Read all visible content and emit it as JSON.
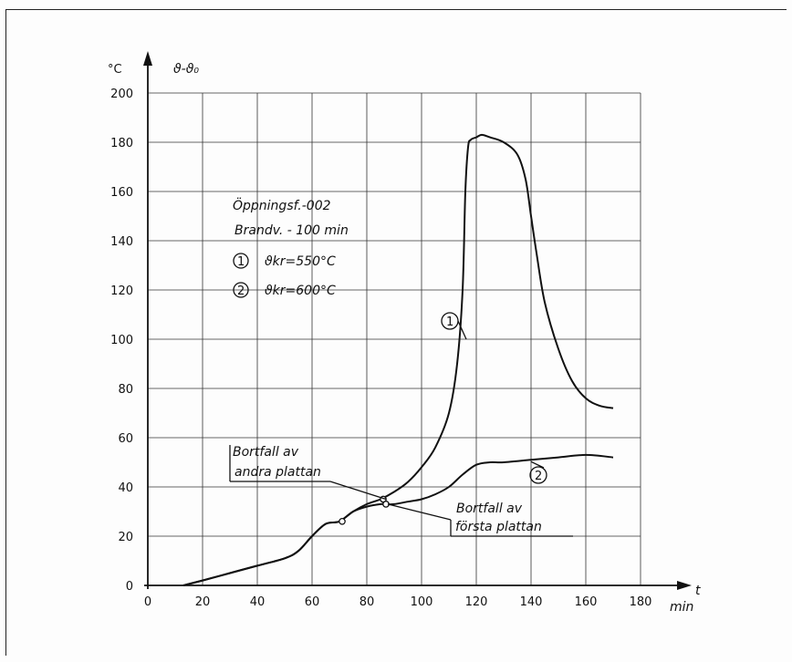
{
  "chart_data": {
    "type": "line",
    "y_unit_label": "°C",
    "y_quantity_label": "ϑ-ϑ₀",
    "x_quantity_label": "t",
    "x_unit_label": "min",
    "xlim": [
      0,
      180
    ],
    "ylim": [
      0,
      200
    ],
    "x_ticks": [
      0,
      20,
      40,
      60,
      80,
      100,
      120,
      140,
      160,
      180
    ],
    "y_ticks": [
      0,
      20,
      40,
      60,
      80,
      100,
      120,
      140,
      160,
      180,
      200
    ],
    "grid": true,
    "info_box": {
      "line1": "Öppningsf.-002",
      "line2": "Brandv. - 100 min",
      "item1_marker": "1",
      "item1_text": "ϑkr=550°C",
      "item2_marker": "2",
      "item2_text": "ϑkr=600°C"
    },
    "series": [
      {
        "name": "1",
        "x": [
          13,
          20,
          30,
          40,
          50,
          55,
          60,
          65,
          70,
          75,
          80,
          85,
          90,
          95,
          100,
          105,
          110,
          113,
          115,
          116,
          117,
          118,
          120,
          122,
          125,
          130,
          135,
          138,
          140,
          142,
          145,
          150,
          155,
          160,
          165,
          170
        ],
        "y": [
          0,
          2,
          5,
          8,
          11,
          14,
          20,
          25,
          26,
          30,
          33,
          35,
          38,
          42,
          48,
          56,
          70,
          90,
          120,
          160,
          178,
          181,
          182,
          183,
          182,
          180,
          175,
          165,
          150,
          135,
          115,
          96,
          83,
          76,
          73,
          72
        ]
      },
      {
        "name": "2",
        "x": [
          13,
          20,
          30,
          40,
          50,
          55,
          60,
          65,
          70,
          75,
          80,
          85,
          87,
          90,
          95,
          100,
          105,
          110,
          115,
          120,
          125,
          130,
          140,
          150,
          160,
          170
        ],
        "y": [
          0,
          2,
          5,
          8,
          11,
          14,
          20,
          25,
          26,
          30,
          32,
          33,
          33,
          33,
          34,
          35,
          37,
          40,
          45,
          49,
          50,
          50,
          51,
          52,
          53,
          52
        ]
      }
    ],
    "annotations": [
      {
        "text_line1": "Bortfall av",
        "text_line2": "andra plattan",
        "x": 87,
        "y": 35
      },
      {
        "text_line1": "Bortfall av",
        "text_line2": "första plattan",
        "x": 87,
        "y": 33
      },
      {
        "label": "1",
        "x": 117,
        "y": 100
      },
      {
        "label": "2",
        "x": 140,
        "y": 51
      }
    ],
    "markers": [
      {
        "x": 71,
        "y": 26
      },
      {
        "x": 86,
        "y": 35
      },
      {
        "x": 87,
        "y": 33
      }
    ]
  }
}
